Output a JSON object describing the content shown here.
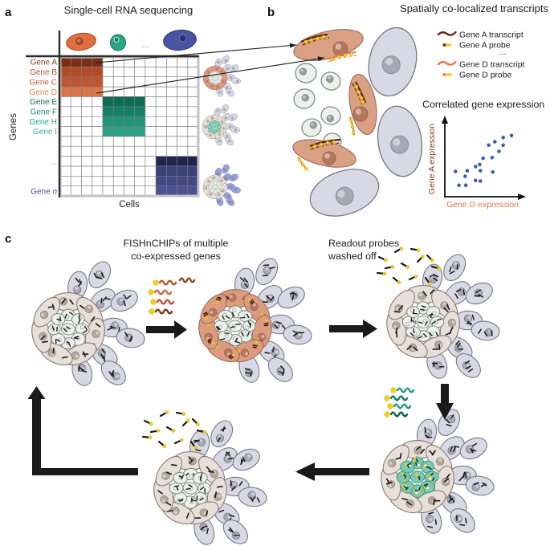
{
  "panel_a": {
    "label": "a",
    "title": "Single-cell RNA sequencing",
    "y_axis_label": "Genes",
    "x_axis_label": "Cells",
    "column_ellipsis": "...",
    "cluster_ellipsis": "...",
    "cell_types": [
      {
        "name": "orange-cell",
        "color": "#dd6f43"
      },
      {
        "name": "teal-cell",
        "color": "#2aa488"
      },
      {
        "name": "blue-cell",
        "color": "#4a55a2"
      }
    ],
    "gene_rows": [
      {
        "label": "Gene A",
        "color": "#8c3a24",
        "row": 0
      },
      {
        "label": "Gene B",
        "color": "#bf4a28",
        "row": 1
      },
      {
        "label": "Gene C",
        "color": "#c75a33",
        "row": 2
      },
      {
        "label": "Gene D",
        "color": "#e08050",
        "row": 3
      },
      {
        "label": "Gene E",
        "color": "#0d6b54",
        "row": 4
      },
      {
        "label": "Gene F",
        "color": "#1d8a6e",
        "row": 5
      },
      {
        "label": "Gene H",
        "color": "#27a083",
        "row": 6
      },
      {
        "label": "Gene I",
        "color": "#3db092",
        "row": 7
      },
      {
        "label": "...",
        "color": "#9aa0cc",
        "row": 10
      },
      {
        "label": "Gene ",
        "italic_suffix": "n",
        "color": "#4a4f9e",
        "row": 13
      }
    ],
    "matrix": {
      "rows": 14,
      "cols": 13,
      "blocks": [
        {
          "gene_group": "Genes A-D",
          "start_row": 0,
          "start_col": 0,
          "col_span": 4,
          "row_colors": [
            "#7c2f16",
            "#b34a26",
            "#bf5530",
            "#d8764a"
          ]
        },
        {
          "gene_group": "Genes E-I",
          "start_row": 4,
          "start_col": 4,
          "col_span": 4,
          "row_colors": [
            "#0d6b52",
            "#148068",
            "#1f9478",
            "#2ba286"
          ]
        },
        {
          "gene_group": "Gene n group",
          "start_row": 10,
          "start_col": 9,
          "col_span": 4,
          "row_colors": [
            "#20244e",
            "#3a4079",
            "#424884",
            "#4b5191"
          ]
        }
      ]
    }
  },
  "panel_b": {
    "label": "b",
    "title": "Spatially co-localized transcripts",
    "legend": [
      {
        "type": "transcript",
        "color": "#6b2812",
        "label": "Gene A transcript"
      },
      {
        "type": "probe",
        "tip": "#6b2812",
        "body": "#f0cf1e",
        "label": "Gene A probe"
      },
      {
        "type": "ellipsis",
        "label": "..."
      },
      {
        "type": "transcript",
        "color": "#e4764c",
        "label": "Gene D transcript"
      },
      {
        "type": "probe",
        "tip": "#e08050",
        "body": "#f0cf1e",
        "label": "Gene D probe"
      }
    ],
    "scatter": {
      "title": "Correlated gene expression",
      "x_label": "Gene D expression",
      "y_label": "Gene A expression",
      "x_label_color": "#e4764c",
      "y_label_color": "#8c3a24",
      "dot_color": "#3f5ead"
    }
  },
  "panel_c": {
    "label": "c",
    "step1_line1": "FISHnCHIPs of multiple",
    "step1_line2": "co-expressed genes",
    "step2_line1": "Readout probes",
    "step2_line2": "washed off"
  },
  "chart_data": {
    "type": "scatter",
    "title": "Correlated gene expression",
    "xlabel": "Gene D expression",
    "ylabel": "Gene A expression",
    "x_range": [
      0,
      1
    ],
    "y_range": [
      0,
      1
    ],
    "points": [
      [
        0.12,
        0.32
      ],
      [
        0.17,
        0.12
      ],
      [
        0.26,
        0.25
      ],
      [
        0.27,
        0.12
      ],
      [
        0.29,
        0.33
      ],
      [
        0.41,
        0.39
      ],
      [
        0.41,
        0.19
      ],
      [
        0.47,
        0.42
      ],
      [
        0.48,
        0.33
      ],
      [
        0.48,
        0.18
      ],
      [
        0.52,
        0.51
      ],
      [
        0.6,
        0.7
      ],
      [
        0.65,
        0.52
      ],
      [
        0.66,
        0.31
      ],
      [
        0.69,
        0.75
      ],
      [
        0.75,
        0.61
      ],
      [
        0.81,
        0.81
      ],
      [
        0.81,
        0.7
      ],
      [
        0.93,
        0.84
      ]
    ]
  },
  "colors": {
    "salmon_cell": "#dc9b7e",
    "pale_ring_cell": "#e8dfda",
    "pale_inner_cell": "#edf1ec",
    "teal_inner_cell": "#7bc9b1",
    "lavender_cell": "#d9d9e6",
    "purple_cell": "#9ba1d6",
    "probe_yellow": "#f0cf1e",
    "arrow_black": "#1a1a1a",
    "transcript_dark": "#5e220e",
    "transcript_dark_dashed": "#8a2a12",
    "transcript_orange": "#e4764c",
    "probe_teal": "#157a63"
  }
}
